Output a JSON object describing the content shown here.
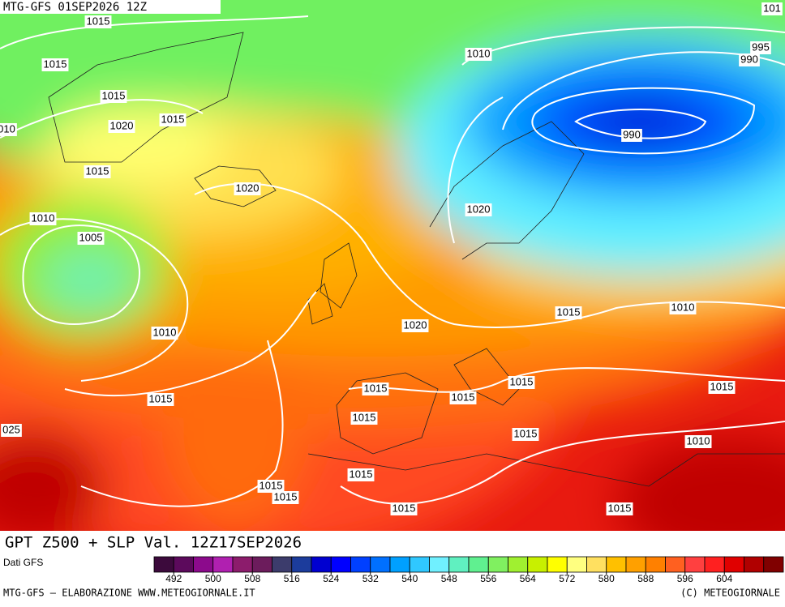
{
  "header": {
    "run": "MTG-GFS 01SEP2026 12Z"
  },
  "map": {
    "title": "GPT Z500 + SLP Val. 12Z17SEP2026",
    "isobar_labels": [
      "1015",
      "1015",
      "1015",
      "1020",
      "1015",
      "010",
      "1015",
      "1020",
      "1010",
      "1005",
      "1010",
      "1015",
      "025",
      "1010",
      "101",
      "995",
      "990",
      "990",
      "1020",
      "1015",
      "1010",
      "1020",
      "1015",
      "1015",
      "1015",
      "1015",
      "1015",
      "1015",
      "1010",
      "1015",
      "1015",
      "1015",
      "1015",
      "1015"
    ]
  },
  "colorbar": {
    "source": "Dati GFS",
    "range": [
      488,
      616
    ],
    "ticks": [
      492,
      500,
      508,
      516,
      524,
      532,
      540,
      548,
      556,
      564,
      572,
      580,
      588,
      596,
      604
    ],
    "colors": [
      "#3c0a3c",
      "#5c0a5c",
      "#8c0a8c",
      "#b020b0",
      "#8c1c6c",
      "#6c1c5c",
      "#3c3c6c",
      "#1c3c9c",
      "#0000d0",
      "#0000ff",
      "#0040ff",
      "#0070ff",
      "#00a0ff",
      "#30c8ff",
      "#70f0ff",
      "#60f0c0",
      "#60f090",
      "#80f060",
      "#a0f030",
      "#c8f000",
      "#ffff00",
      "#ffff80",
      "#ffe060",
      "#ffc000",
      "#ffa000",
      "#ff8000",
      "#ff6020",
      "#ff4040",
      "#ff2020",
      "#e00000",
      "#b00000",
      "#800000"
    ]
  },
  "footer": {
    "left": "MTG-GFS — ELABORAZIONE WWW.METEOGIORNALE.IT",
    "right": "(C) METEOGIORNALE"
  }
}
